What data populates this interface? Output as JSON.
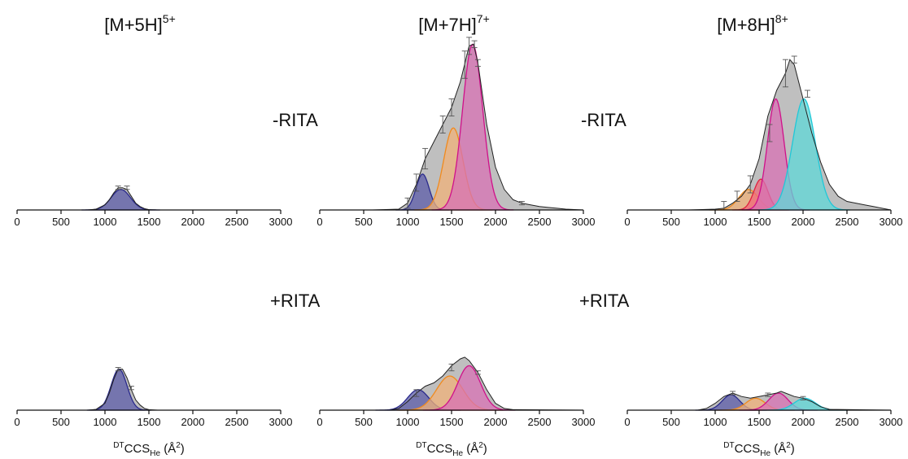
{
  "figure": {
    "x_tick_labels": [
      "0",
      "500",
      "1000",
      "1500",
      "2000",
      "2500",
      "3000"
    ],
    "x_axis_label_parts": {
      "sup": "DT",
      "main": "CCS",
      "sub": "He",
      "unit_open": " (Å",
      "unit_sup": "2",
      "unit_close": ")"
    },
    "colors": {
      "total": "#b4b4b4",
      "total_line": "#222222",
      "blue": "#5c5ca8",
      "blue_line": "#2a2a8c",
      "orange": "#f0b27a",
      "orange_line": "#f08a1e",
      "red": "#f06a78",
      "red_line": "#e02040",
      "magenta": "#d872b4",
      "magenta_line": "#d0108a",
      "cyan": "#5fd8d8",
      "cyan_line": "#20c8d8"
    }
  },
  "chart_data": [
    {
      "type": "area",
      "title": "[M+5H]",
      "title_sup": "5+",
      "condition": "",
      "xlim": [
        0,
        3000
      ],
      "ylim": [
        0,
        1
      ],
      "x": [
        800,
        900,
        1000,
        1050,
        1100,
        1150,
        1200,
        1250,
        1300,
        1350,
        1400,
        1450,
        1500,
        1600
      ],
      "total": [
        0,
        0.005,
        0.03,
        0.06,
        0.1,
        0.13,
        0.13,
        0.12,
        0.08,
        0.04,
        0.02,
        0.008,
        0.002,
        0
      ],
      "components": [
        {
          "color_key": "blue",
          "center": 1180,
          "sigma": 110,
          "height": 0.12
        }
      ],
      "error_bars": [
        {
          "x": 1150,
          "y": 0.13,
          "err": 0.01
        },
        {
          "x": 1250,
          "y": 0.13,
          "err": 0.01
        }
      ]
    },
    {
      "type": "area",
      "title": "[M+7H]",
      "title_sup": "7+",
      "condition": "",
      "xlim": [
        0,
        3000
      ],
      "ylim": [
        0,
        1
      ],
      "x": [
        0,
        600,
        900,
        1000,
        1100,
        1200,
        1300,
        1400,
        1500,
        1600,
        1700,
        1750,
        1800,
        1900,
        2000,
        2100,
        2200,
        2300,
        2400,
        2500,
        2600,
        2700,
        2800,
        3000
      ],
      "total": [
        0,
        0,
        0.005,
        0.04,
        0.15,
        0.3,
        0.4,
        0.5,
        0.6,
        0.75,
        0.96,
        0.97,
        0.86,
        0.5,
        0.25,
        0.12,
        0.06,
        0.04,
        0.03,
        0.02,
        0.015,
        0.01,
        0.005,
        0
      ],
      "components": [
        {
          "color_key": "blue",
          "center": 1170,
          "sigma": 75,
          "height": 0.21
        },
        {
          "color_key": "orange",
          "center": 1520,
          "sigma": 110,
          "height": 0.48
        },
        {
          "color_key": "magenta",
          "center": 1740,
          "sigma": 115,
          "height": 0.97
        }
      ],
      "error_bars": [
        {
          "x": 1000,
          "y": 0.04,
          "err": 0.03
        },
        {
          "x": 1100,
          "y": 0.16,
          "err": 0.05
        },
        {
          "x": 1200,
          "y": 0.3,
          "err": 0.06
        },
        {
          "x": 1400,
          "y": 0.5,
          "err": 0.05
        },
        {
          "x": 1500,
          "y": 0.6,
          "err": 0.05
        },
        {
          "x": 1650,
          "y": 0.85,
          "err": 0.08
        },
        {
          "x": 1700,
          "y": 0.96,
          "err": 0.05
        },
        {
          "x": 1760,
          "y": 0.97,
          "err": 0.02
        },
        {
          "x": 1800,
          "y": 0.86,
          "err": 0.02
        },
        {
          "x": 2300,
          "y": 0.04,
          "err": 0.01
        }
      ]
    },
    {
      "type": "area",
      "title": "[M+8H]",
      "title_sup": "8+",
      "condition": "-RITA",
      "xlim": [
        0,
        3000
      ],
      "ylim": [
        0,
        1
      ],
      "x": [
        0,
        700,
        1000,
        1100,
        1200,
        1300,
        1400,
        1500,
        1600,
        1700,
        1800,
        1850,
        1900,
        2000,
        2100,
        2200,
        2300,
        2400,
        2500,
        2600,
        2700,
        2800,
        3000
      ],
      "total": [
        0,
        0,
        0.005,
        0.01,
        0.04,
        0.08,
        0.15,
        0.3,
        0.55,
        0.7,
        0.8,
        0.88,
        0.85,
        0.65,
        0.45,
        0.28,
        0.15,
        0.08,
        0.05,
        0.04,
        0.03,
        0.02,
        0
      ],
      "components": [
        {
          "color_key": "orange",
          "center": 1380,
          "sigma": 110,
          "height": 0.12
        },
        {
          "color_key": "red",
          "center": 1520,
          "sigma": 80,
          "height": 0.18
        },
        {
          "color_key": "magenta",
          "center": 1690,
          "sigma": 95,
          "height": 0.65
        },
        {
          "color_key": "cyan",
          "center": 2010,
          "sigma": 130,
          "height": 0.65
        }
      ],
      "error_bars": [
        {
          "x": 1100,
          "y": 0.02,
          "err": 0.03
        },
        {
          "x": 1250,
          "y": 0.08,
          "err": 0.03
        },
        {
          "x": 1400,
          "y": 0.15,
          "err": 0.05
        },
        {
          "x": 1620,
          "y": 0.45,
          "err": 0.05
        },
        {
          "x": 1800,
          "y": 0.8,
          "err": 0.08
        },
        {
          "x": 1900,
          "y": 0.88,
          "err": 0.02
        },
        {
          "x": 2050,
          "y": 0.68,
          "err": 0.02
        }
      ]
    },
    {
      "type": "area",
      "title": "",
      "title_sup": "",
      "condition": "+RITA",
      "xlim": [
        0,
        3000
      ],
      "ylim": [
        0,
        1
      ],
      "x": [
        800,
        900,
        1000,
        1050,
        1100,
        1150,
        1200,
        1250,
        1300,
        1350,
        1400,
        1450,
        1500,
        1600
      ],
      "total": [
        0,
        0.005,
        0.04,
        0.1,
        0.18,
        0.24,
        0.24,
        0.19,
        0.12,
        0.06,
        0.03,
        0.01,
        0.003,
        0
      ],
      "components": [
        {
          "color_key": "blue",
          "center": 1160,
          "sigma": 90,
          "height": 0.24
        }
      ],
      "error_bars": [
        {
          "x": 1150,
          "y": 0.24,
          "err": 0.01
        },
        {
          "x": 1300,
          "y": 0.13,
          "err": 0.01
        }
      ]
    },
    {
      "type": "area",
      "title": "",
      "title_sup": "",
      "condition": "",
      "xlim": [
        0,
        3000
      ],
      "ylim": [
        0,
        1
      ],
      "x": [
        0,
        800,
        900,
        1000,
        1100,
        1200,
        1300,
        1400,
        1500,
        1600,
        1650,
        1700,
        1800,
        1900,
        2000,
        2100,
        2200,
        3000
      ],
      "total": [
        0,
        0,
        0.01,
        0.05,
        0.1,
        0.14,
        0.16,
        0.2,
        0.26,
        0.3,
        0.31,
        0.29,
        0.22,
        0.12,
        0.04,
        0.01,
        0.003,
        0
      ],
      "components": [
        {
          "color_key": "blue",
          "center": 1120,
          "sigma": 120,
          "height": 0.12
        },
        {
          "color_key": "orange",
          "center": 1480,
          "sigma": 150,
          "height": 0.2
        },
        {
          "color_key": "magenta",
          "center": 1700,
          "sigma": 130,
          "height": 0.26
        }
      ],
      "error_bars": [
        {
          "x": 1100,
          "y": 0.1,
          "err": 0.02
        },
        {
          "x": 1500,
          "y": 0.25,
          "err": 0.02
        },
        {
          "x": 1800,
          "y": 0.22,
          "err": 0.01
        }
      ]
    },
    {
      "type": "area",
      "title": "",
      "title_sup": "",
      "condition": "+RITA",
      "xlim": [
        0,
        3000
      ],
      "ylim": [
        0,
        1
      ],
      "x": [
        0,
        800,
        900,
        1000,
        1100,
        1200,
        1300,
        1400,
        1500,
        1600,
        1700,
        1750,
        1800,
        1900,
        2000,
        2100,
        2200,
        2300,
        3000
      ],
      "total": [
        0,
        0,
        0.01,
        0.04,
        0.08,
        0.1,
        0.08,
        0.07,
        0.08,
        0.09,
        0.1,
        0.11,
        0.1,
        0.08,
        0.07,
        0.05,
        0.02,
        0.005,
        0
      ],
      "components": [
        {
          "color_key": "blue",
          "center": 1180,
          "sigma": 100,
          "height": 0.09
        },
        {
          "color_key": "orange",
          "center": 1460,
          "sigma": 110,
          "height": 0.07
        },
        {
          "color_key": "magenta",
          "center": 1720,
          "sigma": 110,
          "height": 0.1
        },
        {
          "color_key": "cyan",
          "center": 2020,
          "sigma": 120,
          "height": 0.07
        }
      ],
      "error_bars": [
        {
          "x": 1200,
          "y": 0.1,
          "err": 0.01
        },
        {
          "x": 1600,
          "y": 0.09,
          "err": 0.01
        },
        {
          "x": 2000,
          "y": 0.07,
          "err": 0.01
        }
      ]
    }
  ]
}
